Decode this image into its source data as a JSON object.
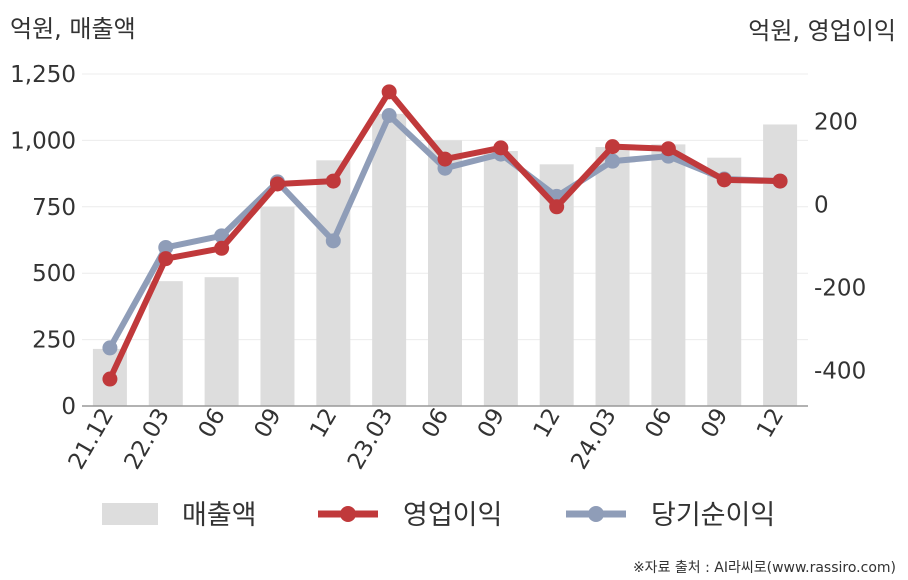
{
  "chart_data": {
    "type": "bar+line",
    "categories": [
      "21.12",
      "22.03",
      "06",
      "09",
      "12",
      "23.03",
      "06",
      "09",
      "12",
      "24.03",
      "06",
      "09",
      "12"
    ],
    "left_axis": {
      "title": "억원, 매출액",
      "ylim": [
        0,
        1250
      ],
      "ticks": [
        "0",
        "250",
        "500",
        "750",
        "1,000",
        "1,250"
      ],
      "tick_values": [
        0,
        250,
        500,
        750,
        1000,
        1250
      ]
    },
    "right_axis": {
      "title": "억원, 영업이익",
      "ylim": [
        -485,
        315
      ],
      "ticks": [
        "-400",
        "-200",
        "0",
        "200"
      ],
      "tick_values": [
        -400,
        -200,
        0,
        200
      ]
    },
    "grid": true,
    "legend_position": "bottom",
    "series": [
      {
        "name": "매출액",
        "kind": "bar",
        "axis": "left",
        "color": "#dddddd",
        "values": [
          215,
          470,
          485,
          750,
          925,
          1100,
          1000,
          960,
          910,
          975,
          985,
          935,
          1060
        ]
      },
      {
        "name": "영업이익",
        "kind": "line",
        "axis": "right",
        "color": "#c0393b",
        "values": [
          -420,
          -130,
          -105,
          50,
          57,
          272,
          110,
          137,
          -5,
          140,
          135,
          60,
          57
        ]
      },
      {
        "name": "당기순이익",
        "kind": "line",
        "axis": "right",
        "color": "#8f9db8",
        "values": [
          -345,
          -103,
          -75,
          55,
          -87,
          215,
          88,
          122,
          20,
          105,
          117,
          62,
          57
        ]
      }
    ],
    "source": "※자료 출처 : AI라씨로(www.rassiro.com)"
  }
}
